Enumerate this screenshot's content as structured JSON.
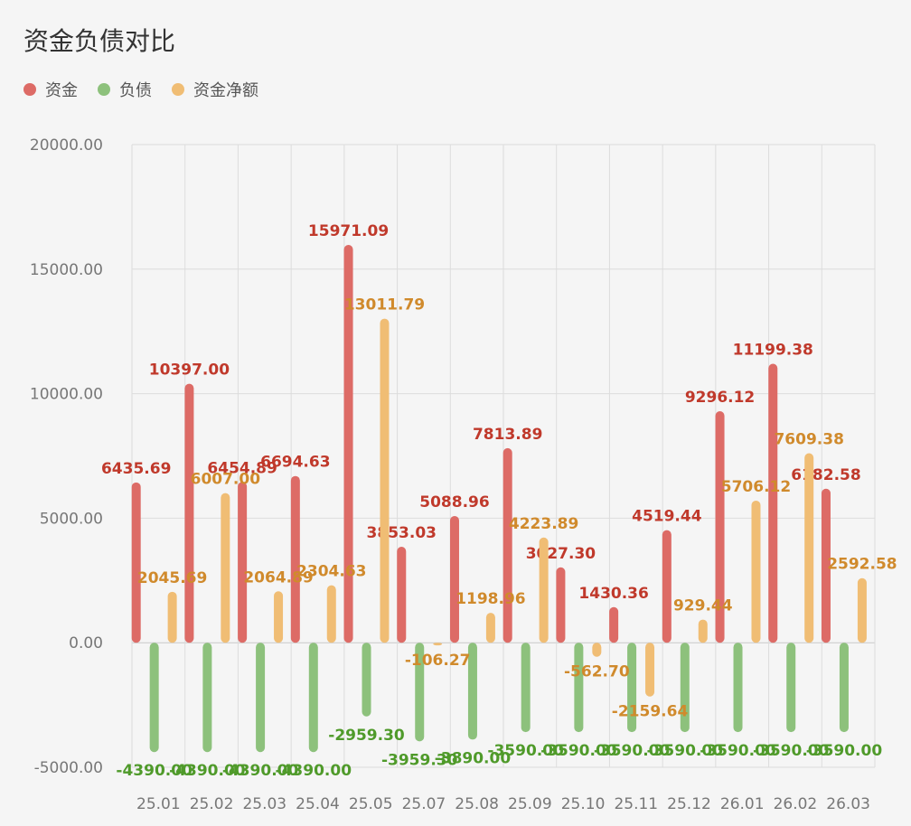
{
  "chart_data": {
    "type": "bar",
    "title": "资金负债对比",
    "categories": [
      "25.01",
      "25.02",
      "25.03",
      "25.04",
      "25.05",
      "25.07",
      "25.08",
      "25.09",
      "25.10",
      "25.11",
      "25.12",
      "26.01",
      "26.02",
      "26.03"
    ],
    "series": [
      {
        "name": "资金",
        "color": "#dd6b66",
        "values": [
          6435.69,
          10397.0,
          6454.89,
          6694.63,
          15971.09,
          3853.03,
          5088.96,
          7813.89,
          3027.3,
          1430.36,
          4519.44,
          9296.12,
          11199.38,
          6182.58
        ],
        "labels": [
          "6435.69",
          "10397.00",
          "6454.89",
          "6694.63",
          "15971.09",
          "3853.03",
          "5088.96",
          "7813.89",
          "3027.30",
          "1430.36",
          "4519.44",
          "9296.12",
          "11199.38",
          "6182.58"
        ]
      },
      {
        "name": "负债",
        "color": "#8dc17c",
        "values": [
          -4390.0,
          -4390.0,
          -4390.0,
          -4390.0,
          -2959.3,
          -3959.3,
          -3890.0,
          -3590.0,
          -3590.0,
          -3590.0,
          -3590.0,
          -3590.0,
          -3590.0,
          -3590.0
        ],
        "labels": [
          "-4390.00",
          "-4390.00",
          "-4390.00",
          "-4390.00",
          "-2959.30",
          "-3959.30",
          "-3890.00",
          "-3590.00",
          "-3590.00",
          "-3590.00",
          "-3590.00",
          "-3590.00",
          "-3590.00",
          "-3590.00"
        ]
      },
      {
        "name": "资金净额",
        "color": "#f0bd74",
        "values": [
          2045.69,
          6007.0,
          2064.89,
          2304.63,
          13011.79,
          -106.27,
          1198.96,
          4223.89,
          -562.7,
          -2159.64,
          929.44,
          5706.12,
          7609.38,
          2592.58
        ],
        "labels": [
          "2045.69",
          "6007.00",
          "2064.89",
          "2304.63",
          "13011.79",
          "-106.27",
          "1198.96",
          "4223.89",
          "-562.70",
          "-2159.64",
          "929.44",
          "5706.12",
          "7609.38",
          "2592.58"
        ]
      }
    ],
    "y_ticks": [
      "20000.00",
      "15000.00",
      "10000.00",
      "5000.00",
      "0.00",
      "-5000.00"
    ],
    "ylim": [
      -5000,
      20000
    ],
    "grid": true,
    "legend_position": "top-left"
  }
}
